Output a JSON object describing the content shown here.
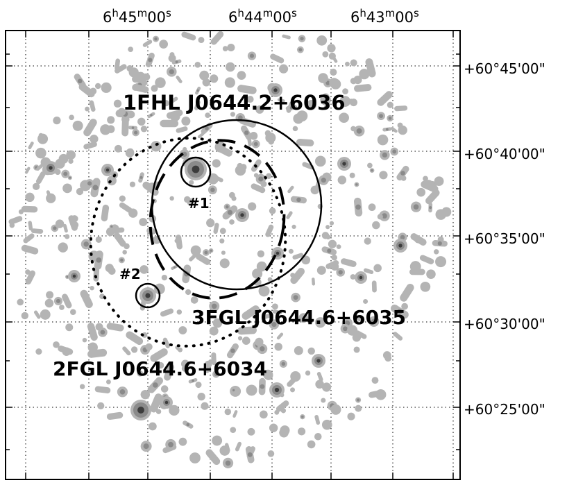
{
  "ra_axis": {
    "ticks": [
      {
        "h": "6",
        "m": "45",
        "s": "00"
      },
      {
        "h": "6",
        "m": "44",
        "s": "00"
      },
      {
        "h": "6",
        "m": "43",
        "s": "00"
      }
    ],
    "units": {
      "h": "h",
      "m": "m",
      "s": "s"
    }
  },
  "dec_axis": {
    "ticks": [
      "+60°45'00\"",
      "+60°40'00\"",
      "+60°35'00\"",
      "+60°30'00\"",
      "+60°25'00\""
    ]
  },
  "sources": {
    "fhl": "1FHL J0644.2+6036",
    "fgl3": "3FGL J0644.6+6035",
    "fgl2": "2FGL J0644.6+6034"
  },
  "candidates": {
    "c1": "#1",
    "c2": "#2"
  },
  "colors": {
    "background": "#ffffff",
    "emission_faint": "#b4b4b4",
    "emission_mid": "#8a8a8a",
    "emission_peak": "#3c3c3c",
    "ink": "#000000"
  }
}
